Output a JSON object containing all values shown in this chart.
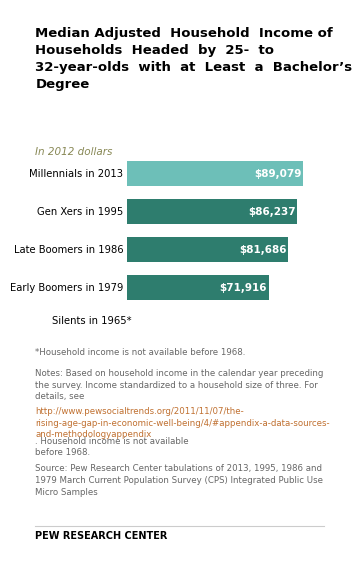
{
  "title": "Median Adjusted  Household  Income of\nHouseholds  Headed  by  25-  to\n32-year-olds  with  at  Least  a  Bachelor’s\nDegree",
  "subtitle": "In 2012 dollars",
  "categories": [
    "Millennials in 2013",
    "Gen Xers in 1995",
    "Late Boomers in 1986",
    "Early Boomers in 1979"
  ],
  "silent_label": "Silents in 1965*",
  "values": [
    89079,
    86237,
    81686,
    71916
  ],
  "labels": [
    "$89,079",
    "$86,237",
    "$81,686",
    "$71,916"
  ],
  "bar_colors": [
    "#6dbfb8",
    "#2e7d6e",
    "#2e7d6e",
    "#2e7d6e"
  ],
  "footnote1": "*Household income is not available before 1968.",
  "notes_line1": "Notes: Based on household income in the calendar year preceding",
  "notes_line2": "the survey. Income standardized to a household size of three. For",
  "notes_line3": "details, see ",
  "url": "http://www.pewsocialtrends.org/2011/11/07/the-\nrising-age-gap-in-economic-well-being/4/#appendix-a-data-sources-\nand-methodologyappendix",
  "notes_end": ". Household income is not available\nbefore 1968.",
  "source": "Source: Pew Research Center tabulations of 2013, 1995, 1986 and\n1979 March Current Population Survey (CPS) Integrated Public Use\nMicro Samples",
  "branding": "PEW RESEARCH CENTER",
  "bg_color": "#ffffff",
  "text_color": "#000000",
  "footnote_color": "#666666",
  "notes_color": "#666666",
  "link_color": "#c07030",
  "xlim_max": 100000
}
